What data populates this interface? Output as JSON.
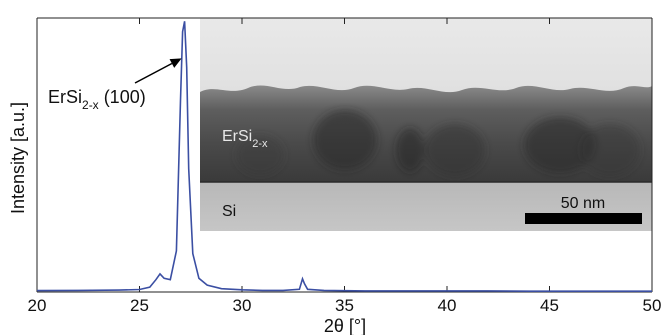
{
  "chart_data": {
    "type": "line",
    "title": "",
    "xlabel": "2θ [°]",
    "ylabel": "Intensity [a.u.]",
    "xlim": [
      20,
      50
    ],
    "ylim": [
      0,
      1
    ],
    "xticks": [
      20,
      25,
      30,
      35,
      40,
      45,
      50
    ],
    "x_tick_labels": [
      "20",
      "25",
      "30",
      "35",
      "40",
      "45",
      "50"
    ],
    "grid": false,
    "series": [
      {
        "color": "#3b4fa3",
        "x": [
          20,
          22,
          24,
          25,
          25.5,
          25.8,
          26.0,
          26.2,
          26.5,
          26.8,
          27.0,
          27.1,
          27.2,
          27.3,
          27.4,
          27.6,
          27.9,
          28.3,
          29,
          30,
          31,
          32,
          32.8,
          32.95,
          33.05,
          33.2,
          34,
          36,
          38,
          40,
          42,
          44,
          46,
          48,
          50
        ],
        "y": [
          0.005,
          0.006,
          0.007,
          0.009,
          0.018,
          0.045,
          0.066,
          0.05,
          0.045,
          0.15,
          0.7,
          0.95,
          0.988,
          0.82,
          0.45,
          0.14,
          0.05,
          0.025,
          0.012,
          0.008,
          0.006,
          0.006,
          0.01,
          0.048,
          0.03,
          0.01,
          0.006,
          0.004,
          0.004,
          0.004,
          0.004,
          0.003,
          0.003,
          0.003,
          0.003
        ]
      }
    ],
    "annotations": [
      {
        "text": "ErSi",
        "sub": "2-x",
        "suffix": " (100)",
        "arrow_to": [
          27.2,
          0.86
        ]
      }
    ]
  },
  "inset": {
    "labels": {
      "layer": "ErSi",
      "layer_sub": "2-x",
      "substrate": "Si",
      "scale_bar": "50 nm"
    }
  }
}
